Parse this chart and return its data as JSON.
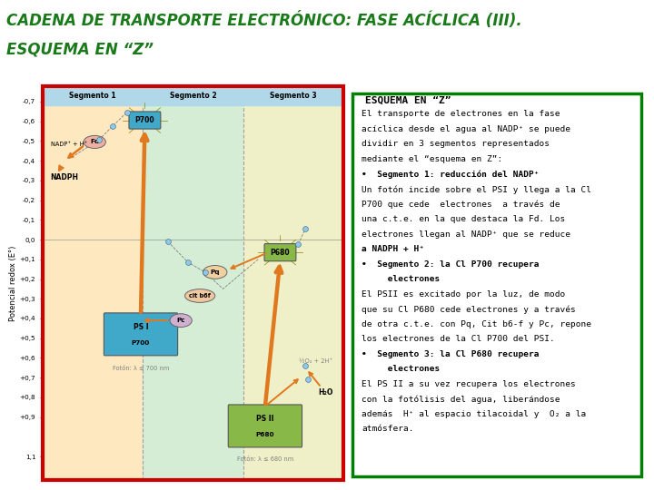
{
  "title_line1": "CADENA DE TRANSPORTE ELECTRÓNICO: FASE ACÍCLICA (III).",
  "title_line2": "ESQUEMA EN “Z”",
  "title_color": "#1a7a1a",
  "title_fontsize": 12,
  "bg_color": "#ffffff",
  "border_color": "#cc0000",
  "right_box_border": "#008000",
  "seg1_bg": "#fde8c0",
  "seg2_bg": "#d4edd4",
  "seg3_bg": "#f0f0c8",
  "header_bg": "#b0d8e8",
  "orange_color": "#e07820",
  "blue_box_color": "#40a8c8",
  "green_box_color": "#88b848",
  "light_blue_dot": "#90c8e8",
  "seg_divider_color": "#a0a0a0",
  "y_vals": [
    -0.7,
    -0.6,
    -0.5,
    -0.4,
    -0.3,
    -0.2,
    -0.1,
    0.0,
    0.1,
    0.2,
    0.3,
    0.4,
    0.5,
    0.6,
    0.7,
    0.8,
    0.9,
    1.1
  ],
  "y_labels": [
    "-0,7",
    "-0,6",
    "-0,5",
    "-0,4",
    "-0,3",
    "-0,2",
    "-0,1",
    "0,0",
    "+0,1",
    "+0,2",
    "+0,3",
    "+0,4",
    "+0,5",
    "+0,6",
    "+0,7",
    "+0,8",
    "+0,9",
    "1,1"
  ],
  "seg_headers": [
    "Segmento 1",
    "Segmento 2",
    "Segmento 3"
  ],
  "right_title": "ESQUEMA EN “Z”",
  "right_lines": [
    {
      "text": "El transporte de electrones en la fase",
      "style": "normal"
    },
    {
      "text": "acíclica desde el agua al NADP⁺ se puede",
      "style": "normal"
    },
    {
      "text": "dividir en 3 segmentos representados",
      "style": "normal"
    },
    {
      "text": "mediante el “esquema en Z”:",
      "style": "normal"
    },
    {
      "text": "•  Segmento 1: reducción del NADP⁺",
      "style": "bold"
    },
    {
      "text": "Un fotón incide sobre el PSI y llega a la Cl",
      "style": "normal"
    },
    {
      "text": "P700 que cede  electrones  a través de",
      "style": "normal"
    },
    {
      "text": "una c.t.e. en la que destaca la Fd. Los",
      "style": "normal"
    },
    {
      "text": "electrones llegan al NADP⁺ que se reduce",
      "style": "normal"
    },
    {
      "text": "a NADPH + H⁺",
      "style": "bold"
    },
    {
      "text": "•  Segmento 2: la Cl P700 recupera",
      "style": "bold"
    },
    {
      "text": "     electrones",
      "style": "bold"
    },
    {
      "text": "El PSII es excitado por la luz, de modo",
      "style": "normal"
    },
    {
      "text": "que su Cl P680 cede electrones y a través",
      "style": "normal"
    },
    {
      "text": "de otra c.t.e. con Pq, Cit b6-f y Pc, repone",
      "style": "normal"
    },
    {
      "text": "los electrones de la Cl P700 del PSI.",
      "style": "normal"
    },
    {
      "text": "•  Segmento 3: la Cl P680 recupera",
      "style": "bold"
    },
    {
      "text": "     electrones",
      "style": "bold"
    },
    {
      "text": "El PS II a su vez recupera los electrones",
      "style": "normal"
    },
    {
      "text": "con la fotólisis del agua, liberándose",
      "style": "normal"
    },
    {
      "text": "además  H⁺ al espacio tilacoidal y  O₂ a la",
      "style": "normal"
    },
    {
      "text": "atmósfera.",
      "style": "normal"
    }
  ]
}
